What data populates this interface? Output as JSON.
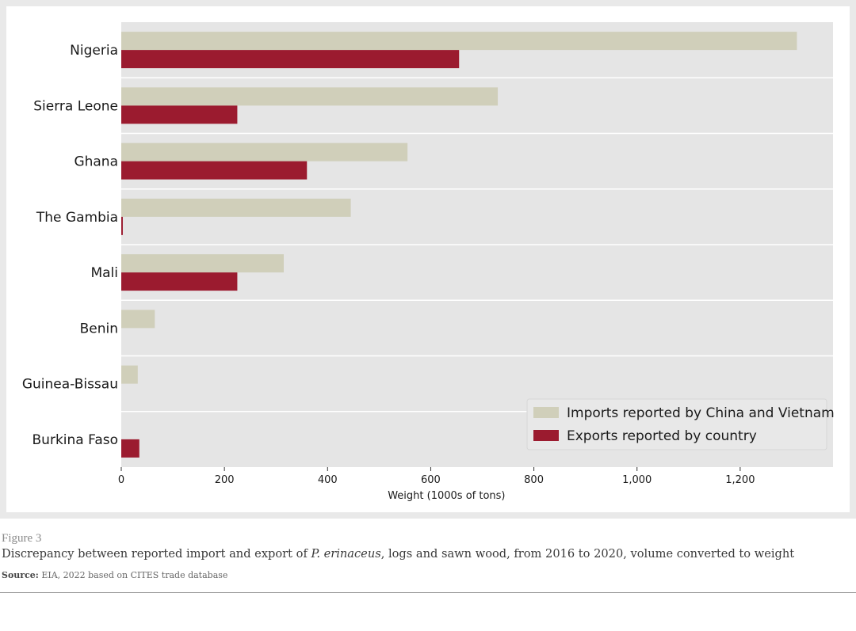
{
  "chart_data": {
    "type": "bar",
    "orientation": "horizontal",
    "categories": [
      "Nigeria",
      "Sierra Leone",
      "Ghana",
      "The Gambia",
      "Mali",
      "Benin",
      "Guinea-Bissau",
      "Burkina Faso"
    ],
    "series": [
      {
        "name": "Imports reported by China and Vietnam",
        "color": "#d0cfba",
        "values": [
          1310,
          730,
          555,
          445,
          315,
          65,
          32,
          0
        ]
      },
      {
        "name": "Exports reported by country",
        "color": "#9b1b2f",
        "values": [
          655,
          225,
          360,
          3,
          225,
          0,
          0,
          35
        ]
      }
    ],
    "xlabel": "Weight (1000s of tons)",
    "xlim": [
      0,
      1380
    ],
    "xticks": [
      0,
      200,
      400,
      600,
      800,
      1000,
      1200
    ],
    "xtick_labels": [
      "0",
      "200",
      "400",
      "600",
      "800",
      "1,000",
      "1,200"
    ],
    "legend_position": "bottom-right",
    "plot_background": "#e5e5e5"
  },
  "caption": {
    "label": "Figure 3",
    "title_prefix": "Discrepancy between reported import and export of ",
    "title_species": "P. erinaceus",
    "title_suffix": ", logs and sawn wood, from 2016 to 2020, volume converted to weight",
    "source_label": "Source:",
    "source_text": " EIA, 2022 based on CITES trade database"
  }
}
